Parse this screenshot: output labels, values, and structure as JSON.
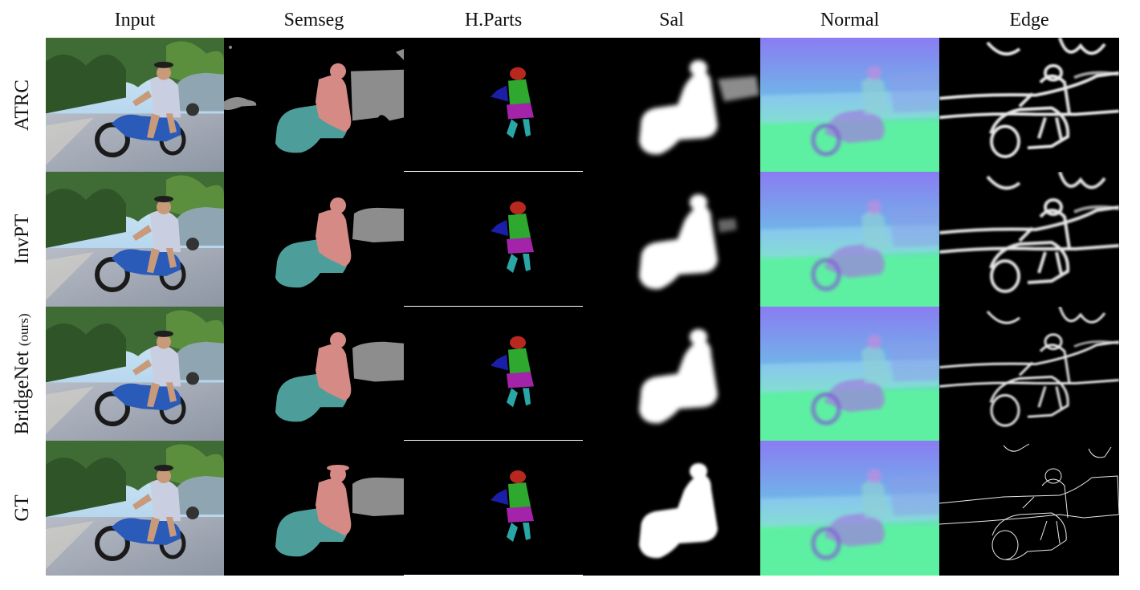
{
  "columns": [
    "Input",
    "Semseg",
    "H.Parts",
    "Sal",
    "Normal",
    "Edge"
  ],
  "rows": [
    {
      "label": "ATRC",
      "suffix": ""
    },
    {
      "label": "InvPT",
      "suffix": ""
    },
    {
      "label": "BridgeNet",
      "suffix": "(ours)"
    },
    {
      "label": "GT",
      "suffix": ""
    }
  ],
  "palette": {
    "sky": "#9fc7e8",
    "trees": "#3f6b34",
    "road": "#8e96a4",
    "scooter": "#2a5bb8",
    "car_gray": "#8d8d8d",
    "person_pink": "#d58a86",
    "vehicle_teal": "#4d9e9a",
    "part_head": "#b8281f",
    "part_torso": "#2ea82e",
    "part_arm": "#1b1fa8",
    "part_legs": "#a324a8",
    "part_lower": "#2aa6a6",
    "normal_top": "#8a7cf2",
    "normal_mid": "#6fb6e8",
    "normal_ground": "#5ef0a2"
  }
}
